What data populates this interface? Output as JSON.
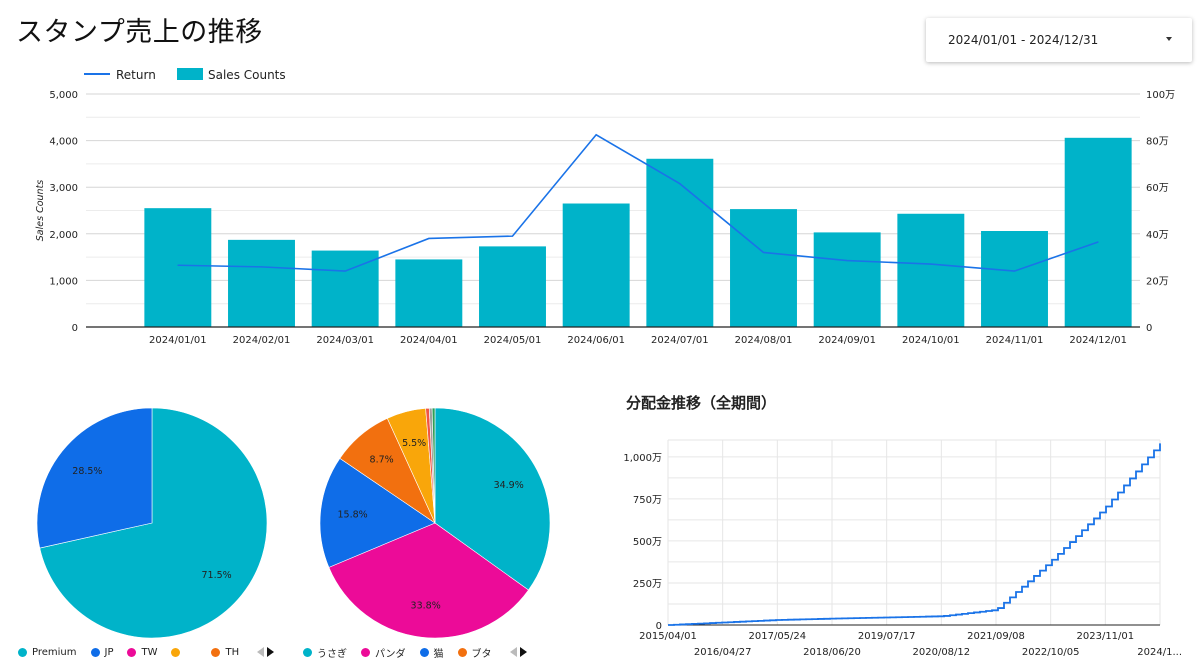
{
  "page": {
    "title": "スタンプ売上の推移",
    "date_range": "2024/01/01 - 2024/12/31"
  },
  "chart_data": [
    {
      "type": "bar",
      "title": "",
      "categories": [
        "2024/01/01",
        "2024/02/01",
        "2024/03/01",
        "2024/04/01",
        "2024/05/01",
        "2024/06/01",
        "2024/07/01",
        "2024/08/01",
        "2024/09/01",
        "2024/10/01",
        "2024/11/01",
        "2024/12/01"
      ],
      "series": [
        {
          "name": "Sales Counts",
          "type": "bar",
          "axis": "left",
          "color": "#00b3c9",
          "values": [
            2550,
            1870,
            1640,
            1450,
            1730,
            2650,
            3610,
            2530,
            2030,
            2430,
            2060,
            4060
          ]
        },
        {
          "name": "Return",
          "type": "line",
          "axis": "right",
          "color": "#1a73e8",
          "values": [
            265000,
            258000,
            240000,
            380000,
            390000,
            825000,
            615000,
            320000,
            285000,
            270000,
            240000,
            365000
          ]
        }
      ],
      "ylabel": "Sales Counts",
      "ylim": [
        0,
        5000
      ],
      "yticks": [
        "0",
        "1,000",
        "2,000",
        "3,000",
        "4,000",
        "5,000"
      ],
      "y2lim": [
        0,
        1000000
      ],
      "y2ticks": [
        "0",
        "20万",
        "40万",
        "60万",
        "80万",
        "100万"
      ],
      "legend": "top-left",
      "grid": true
    },
    {
      "type": "pie",
      "title": "",
      "slices": [
        {
          "label": "Premium",
          "value": 71.5,
          "color": "#00b3c9",
          "text": "71.5%"
        },
        {
          "label": "JP",
          "value": 28.5,
          "color": "#0f6de8",
          "text": "28.5%"
        },
        {
          "label": "TW",
          "value": 0,
          "color": "#ec0b98",
          "text": ""
        },
        {
          "label": "",
          "value": 0,
          "color": "#f9a60a",
          "text": ""
        },
        {
          "label": "TH",
          "value": 0,
          "color": "#f2700f",
          "text": ""
        }
      ],
      "legend": "bottom"
    },
    {
      "type": "pie",
      "title": "",
      "slices": [
        {
          "label": "うさぎ",
          "value": 34.9,
          "color": "#00b3c9",
          "text": "34.9%"
        },
        {
          "label": "パンダ",
          "value": 33.8,
          "color": "#ec0b98",
          "text": "33.8%"
        },
        {
          "label": "猫",
          "value": 15.8,
          "color": "#0f6de8",
          "text": "15.8%"
        },
        {
          "label": "ブタ",
          "value": 8.7,
          "color": "#f2700f",
          "text": "8.7%"
        },
        {
          "label": "",
          "value": 5.5,
          "color": "#f9a60a",
          "text": "5.5%"
        },
        {
          "label": "",
          "value": 0.5,
          "color": "#f05545",
          "text": ""
        },
        {
          "label": "",
          "value": 0.4,
          "color": "#9e9e9e",
          "text": ""
        },
        {
          "label": "",
          "value": 0.4,
          "color": "#2e9e57",
          "text": ""
        }
      ],
      "legend": "bottom"
    },
    {
      "type": "line",
      "title": "分配金推移（全期間）",
      "step": true,
      "color": "#1a73e8",
      "x": [
        "2015/04/01",
        "2016/04/27",
        "2017/05/24",
        "2018/06/20",
        "2019/07/17",
        "2020/08/12",
        "2021/09/08",
        "2022/10/05",
        "2023/11/01",
        "2024/11/27"
      ],
      "y": [
        0,
        15,
        30,
        38,
        45,
        52,
        90,
        380,
        700,
        1080
      ],
      "xticks": [
        "2015/04/01",
        "2016/04/27",
        "2017/05/24",
        "2018/06/20",
        "2019/07/17",
        "2020/08/12",
        "2021/09/08",
        "2022/10/05",
        "2023/11/01",
        "2024/1..."
      ],
      "yticks": [
        "0",
        "250万",
        "500万",
        "750万",
        "1,000万"
      ],
      "ylim": [
        0,
        1100
      ],
      "grid": true
    }
  ],
  "pie_legend_left": {
    "items": [
      {
        "label": "Premium",
        "color": "#00b3c9"
      },
      {
        "label": "JP",
        "color": "#0f6de8"
      },
      {
        "label": "TW",
        "color": "#ec0b98"
      },
      {
        "label": "",
        "color": "#f9a60a"
      },
      {
        "label": "TH",
        "color": "#f2700f"
      }
    ]
  },
  "pie_legend_right": {
    "items": [
      {
        "label": "うさぎ",
        "color": "#00b3c9"
      },
      {
        "label": "パンダ",
        "color": "#ec0b98"
      },
      {
        "label": "猫",
        "color": "#0f6de8"
      },
      {
        "label": "ブタ",
        "color": "#f2700f"
      }
    ]
  }
}
